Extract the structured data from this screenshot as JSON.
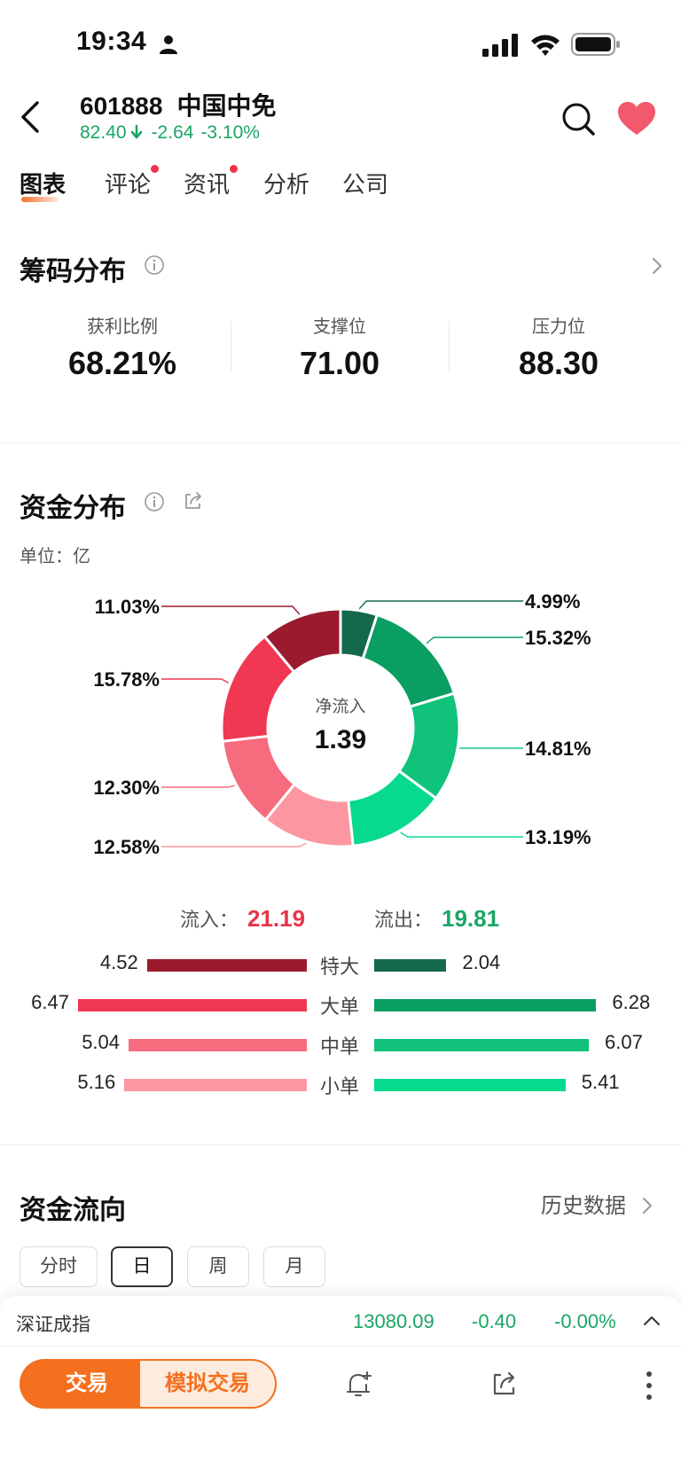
{
  "status_bar": {
    "time": "19:34"
  },
  "stock": {
    "code": "601888",
    "name": "中国中免",
    "price": "82.40",
    "change": "-2.64",
    "change_pct": "-3.10%"
  },
  "tabs": [
    {
      "label": "图表",
      "active": true,
      "dot": false
    },
    {
      "label": "评论",
      "active": false,
      "dot": true
    },
    {
      "label": "资讯",
      "active": false,
      "dot": true
    },
    {
      "label": "分析",
      "active": false,
      "dot": false
    },
    {
      "label": "公司",
      "active": false,
      "dot": false
    }
  ],
  "chip_distribution": {
    "title": "筹码分布",
    "stats": [
      {
        "label": "获利比例",
        "value": "68.21%"
      },
      {
        "label": "支撑位",
        "value": "71.00"
      },
      {
        "label": "压力位",
        "value": "88.30"
      }
    ]
  },
  "fund_distribution": {
    "title": "资金分布",
    "unit": "单位：亿",
    "center_label": "净流入",
    "center_value": "1.39",
    "inflow_label": "流入：",
    "inflow_total": "21.19",
    "outflow_label": "流出：",
    "outflow_total": "19.81",
    "rows": [
      {
        "label": "特大",
        "inflow": 4.52,
        "inflow_text": "4.52",
        "outflow": 2.04,
        "outflow_text": "2.04"
      },
      {
        "label": "大单",
        "inflow": 6.47,
        "inflow_text": "6.47",
        "outflow": 6.28,
        "outflow_text": "6.28"
      },
      {
        "label": "中单",
        "inflow": 5.04,
        "inflow_text": "5.04",
        "outflow": 6.07,
        "outflow_text": "6.07"
      },
      {
        "label": "小单",
        "inflow": 5.16,
        "inflow_text": "5.16",
        "outflow": 5.41,
        "outflow_text": "5.41"
      }
    ]
  },
  "chart_data": {
    "type": "pie",
    "categories": [
      "特大流出",
      "大单流出",
      "中单流出",
      "小单流出",
      "小单流入",
      "中单流入",
      "大单流入",
      "特大流入"
    ],
    "values": [
      4.99,
      15.32,
      14.81,
      13.19,
      12.58,
      12.3,
      15.78,
      11.03
    ],
    "labels": [
      "4.99%",
      "15.32%",
      "14.81%",
      "13.19%",
      "12.58%",
      "12.30%",
      "15.78%",
      "11.03%"
    ],
    "colors": [
      "#13694a",
      "#0a9e63",
      "#10c27a",
      "#07d98d",
      "#fc97a1",
      "#f66b7d",
      "#f03852",
      "#9a1b2e"
    ]
  },
  "fund_flow": {
    "title": "资金流向",
    "history_link": "历史数据",
    "periods": [
      {
        "label": "分时",
        "active": false
      },
      {
        "label": "日",
        "active": true
      },
      {
        "label": "周",
        "active": false
      },
      {
        "label": "月",
        "active": false
      }
    ]
  },
  "index_ticker": {
    "name": "深证成指",
    "value": "13080.09",
    "change": "-0.40",
    "change_pct": "-0.00%"
  },
  "bottom_bar": {
    "trade_label": "交易",
    "sim_trade_label": "模拟交易"
  },
  "colors": {
    "up": "#e8334a",
    "down": "#1aa664",
    "accent": "#f4701f"
  }
}
